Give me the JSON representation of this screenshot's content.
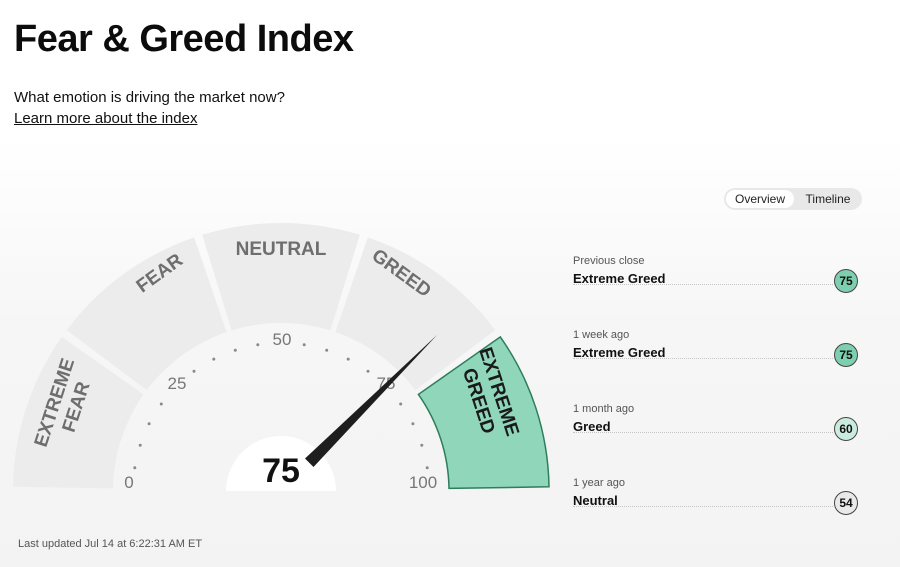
{
  "header": {
    "title": "Fear & Greed Index",
    "subtitle": "What emotion is driving the market now?",
    "learn_more_link": "Learn more about the index"
  },
  "gauge": {
    "score": 75,
    "zones": {
      "extreme_fear": [
        "EXTREME",
        "FEAR"
      ],
      "fear": "FEAR",
      "neutral": "NEUTRAL",
      "greed": "GREED",
      "extreme_greed": [
        "EXTREME",
        "GREED"
      ]
    },
    "active_zone": "extreme_greed",
    "ticks": {
      "t0": "0",
      "t25": "25",
      "t50": "50",
      "t75": "75",
      "t100": "100"
    },
    "colors": {
      "active_fill": "#8fd6ba",
      "active_stroke": "#2e7d5b",
      "inactive_fill": "#ececec",
      "needle": "#1e1e1e"
    }
  },
  "toggle": {
    "overview": "Overview",
    "timeline": "Timeline",
    "selected": "Overview"
  },
  "history": [
    {
      "period": "Previous close",
      "rating": "Extreme Greed",
      "value": "75"
    },
    {
      "period": "1 week ago",
      "rating": "Extreme Greed",
      "value": "75"
    },
    {
      "period": "1 month ago",
      "rating": "Greed",
      "value": "60"
    },
    {
      "period": "1 year ago",
      "rating": "Neutral",
      "value": "54"
    }
  ],
  "footer": {
    "last_updated": "Last updated Jul 14 at 6:22:31 AM ET"
  }
}
